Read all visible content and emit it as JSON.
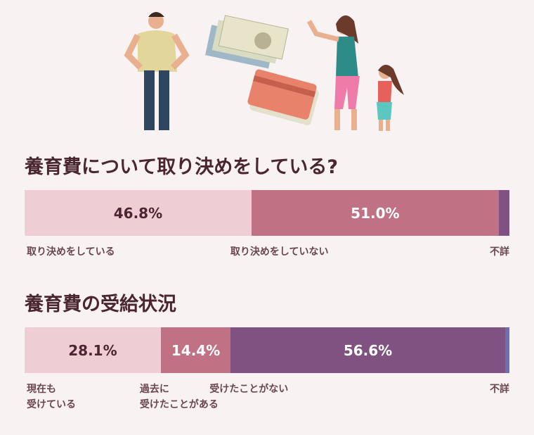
{
  "chart_data": [
    {
      "type": "bar",
      "stacked": true,
      "orientation": "horizontal",
      "title": "養育費について取り決めをしている?",
      "series": [
        {
          "name": "取り決めをしている",
          "color": "#eecdd4",
          "values": [
            46.8
          ],
          "value_labels": [
            "46.8%"
          ]
        },
        {
          "name": "取り決めをしていない",
          "color": "#c07284",
          "values": [
            51.0
          ],
          "value_labels": [
            "51.0%"
          ]
        },
        {
          "name": "不詳",
          "color": "#7f5282",
          "values": [
            2.2
          ]
        }
      ]
    },
    {
      "type": "bar",
      "stacked": true,
      "orientation": "horizontal",
      "title": "養育費の受給状況",
      "series": [
        {
          "name": "現在も\n受けている",
          "color": "#eecdd4",
          "values": [
            28.1
          ],
          "value_labels": [
            "28.1%"
          ]
        },
        {
          "name": "過去に\n受けたことがある",
          "color": "#c07284",
          "values": [
            14.4
          ],
          "value_labels": [
            "14.4%"
          ]
        },
        {
          "name": "受けたことがない",
          "color": "#7f5282",
          "values": [
            56.6
          ],
          "value_labels": [
            "56.6%"
          ]
        },
        {
          "name": "不詳",
          "color": "#6b6fb0",
          "values": [
            0.9
          ]
        }
      ]
    }
  ]
}
